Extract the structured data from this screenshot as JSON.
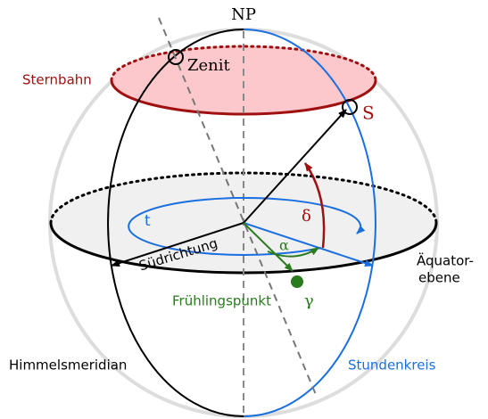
{
  "labels": {
    "north_pole": "NP",
    "zenith": "Zenit",
    "star_path": "Sternbahn",
    "star": "S",
    "hour_angle": "t",
    "declination": "δ",
    "right_ascension": "α",
    "south_direction": "Südrichtung",
    "vernal_point": "Frühlingspunkt",
    "vernal_symbol": "γ",
    "equator_line1": "Äquator-",
    "equator_line2": "ebene",
    "meridian": "Himmelsmeridian",
    "hour_circle": "Stundenkreis"
  }
}
